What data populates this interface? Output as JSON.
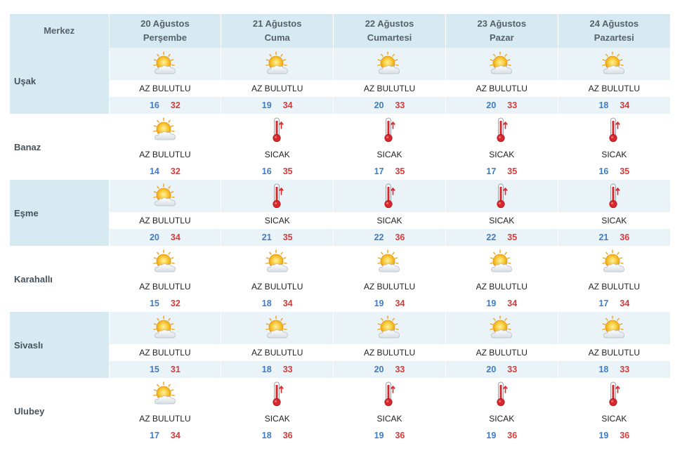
{
  "header": {
    "city_col": "Merkez",
    "days": [
      {
        "date": "20 Ağustos",
        "weekday": "Perşembe"
      },
      {
        "date": "21 Ağustos",
        "weekday": "Cuma"
      },
      {
        "date": "22 Ağustos",
        "weekday": "Cumartesi"
      },
      {
        "date": "23 Ağustos",
        "weekday": "Pazar"
      },
      {
        "date": "24 Ağustos",
        "weekday": "Pazartesi"
      }
    ]
  },
  "colors": {
    "header_bg": "#d7e9f1",
    "row_shade": "#eaf3f7",
    "min_temp": "#3f7cc1",
    "max_temp": "#d43c3c"
  },
  "rows": [
    {
      "city": "Uşak",
      "forecast": [
        {
          "icon": "partly-cloudy-icon",
          "desc": "AZ BULUTLU",
          "min": "16",
          "max": "32"
        },
        {
          "icon": "partly-cloudy-icon",
          "desc": "AZ BULUTLU",
          "min": "19",
          "max": "34"
        },
        {
          "icon": "partly-cloudy-icon",
          "desc": "AZ BULUTLU",
          "min": "20",
          "max": "33"
        },
        {
          "icon": "partly-cloudy-icon",
          "desc": "AZ BULUTLU",
          "min": "20",
          "max": "33"
        },
        {
          "icon": "partly-cloudy-icon",
          "desc": "AZ BULUTLU",
          "min": "18",
          "max": "34"
        }
      ]
    },
    {
      "city": "Banaz",
      "forecast": [
        {
          "icon": "partly-cloudy-icon",
          "desc": "AZ BULUTLU",
          "min": "14",
          "max": "32"
        },
        {
          "icon": "thermometer-hot-icon",
          "desc": "SICAK",
          "min": "16",
          "max": "35"
        },
        {
          "icon": "thermometer-hot-icon",
          "desc": "SICAK",
          "min": "17",
          "max": "35"
        },
        {
          "icon": "thermometer-hot-icon",
          "desc": "SICAK",
          "min": "17",
          "max": "35"
        },
        {
          "icon": "thermometer-hot-icon",
          "desc": "SICAK",
          "min": "16",
          "max": "35"
        }
      ]
    },
    {
      "city": "Eşme",
      "forecast": [
        {
          "icon": "partly-cloudy-icon",
          "desc": "AZ BULUTLU",
          "min": "20",
          "max": "34"
        },
        {
          "icon": "thermometer-hot-icon",
          "desc": "SICAK",
          "min": "21",
          "max": "35"
        },
        {
          "icon": "thermometer-hot-icon",
          "desc": "SICAK",
          "min": "22",
          "max": "36"
        },
        {
          "icon": "thermometer-hot-icon",
          "desc": "SICAK",
          "min": "22",
          "max": "35"
        },
        {
          "icon": "thermometer-hot-icon",
          "desc": "SICAK",
          "min": "21",
          "max": "36"
        }
      ]
    },
    {
      "city": "Karahallı",
      "forecast": [
        {
          "icon": "partly-cloudy-icon",
          "desc": "AZ BULUTLU",
          "min": "15",
          "max": "32"
        },
        {
          "icon": "partly-cloudy-icon",
          "desc": "AZ BULUTLU",
          "min": "18",
          "max": "34"
        },
        {
          "icon": "partly-cloudy-icon",
          "desc": "AZ BULUTLU",
          "min": "19",
          "max": "34"
        },
        {
          "icon": "partly-cloudy-icon",
          "desc": "AZ BULUTLU",
          "min": "19",
          "max": "34"
        },
        {
          "icon": "partly-cloudy-icon",
          "desc": "AZ BULUTLU",
          "min": "17",
          "max": "34"
        }
      ]
    },
    {
      "city": "Sivaslı",
      "forecast": [
        {
          "icon": "partly-cloudy-icon",
          "desc": "AZ BULUTLU",
          "min": "15",
          "max": "31"
        },
        {
          "icon": "partly-cloudy-icon",
          "desc": "AZ BULUTLU",
          "min": "18",
          "max": "33"
        },
        {
          "icon": "partly-cloudy-icon",
          "desc": "AZ BULUTLU",
          "min": "20",
          "max": "33"
        },
        {
          "icon": "partly-cloudy-icon",
          "desc": "AZ BULUTLU",
          "min": "20",
          "max": "33"
        },
        {
          "icon": "partly-cloudy-icon",
          "desc": "AZ BULUTLU",
          "min": "18",
          "max": "33"
        }
      ]
    },
    {
      "city": "Ulubey",
      "forecast": [
        {
          "icon": "partly-cloudy-icon",
          "desc": "AZ BULUTLU",
          "min": "17",
          "max": "34"
        },
        {
          "icon": "thermometer-hot-icon",
          "desc": "SICAK",
          "min": "18",
          "max": "36"
        },
        {
          "icon": "thermometer-hot-icon",
          "desc": "SICAK",
          "min": "19",
          "max": "36"
        },
        {
          "icon": "thermometer-hot-icon",
          "desc": "SICAK",
          "min": "19",
          "max": "36"
        },
        {
          "icon": "thermometer-hot-icon",
          "desc": "SICAK",
          "min": "19",
          "max": "36"
        }
      ]
    }
  ]
}
